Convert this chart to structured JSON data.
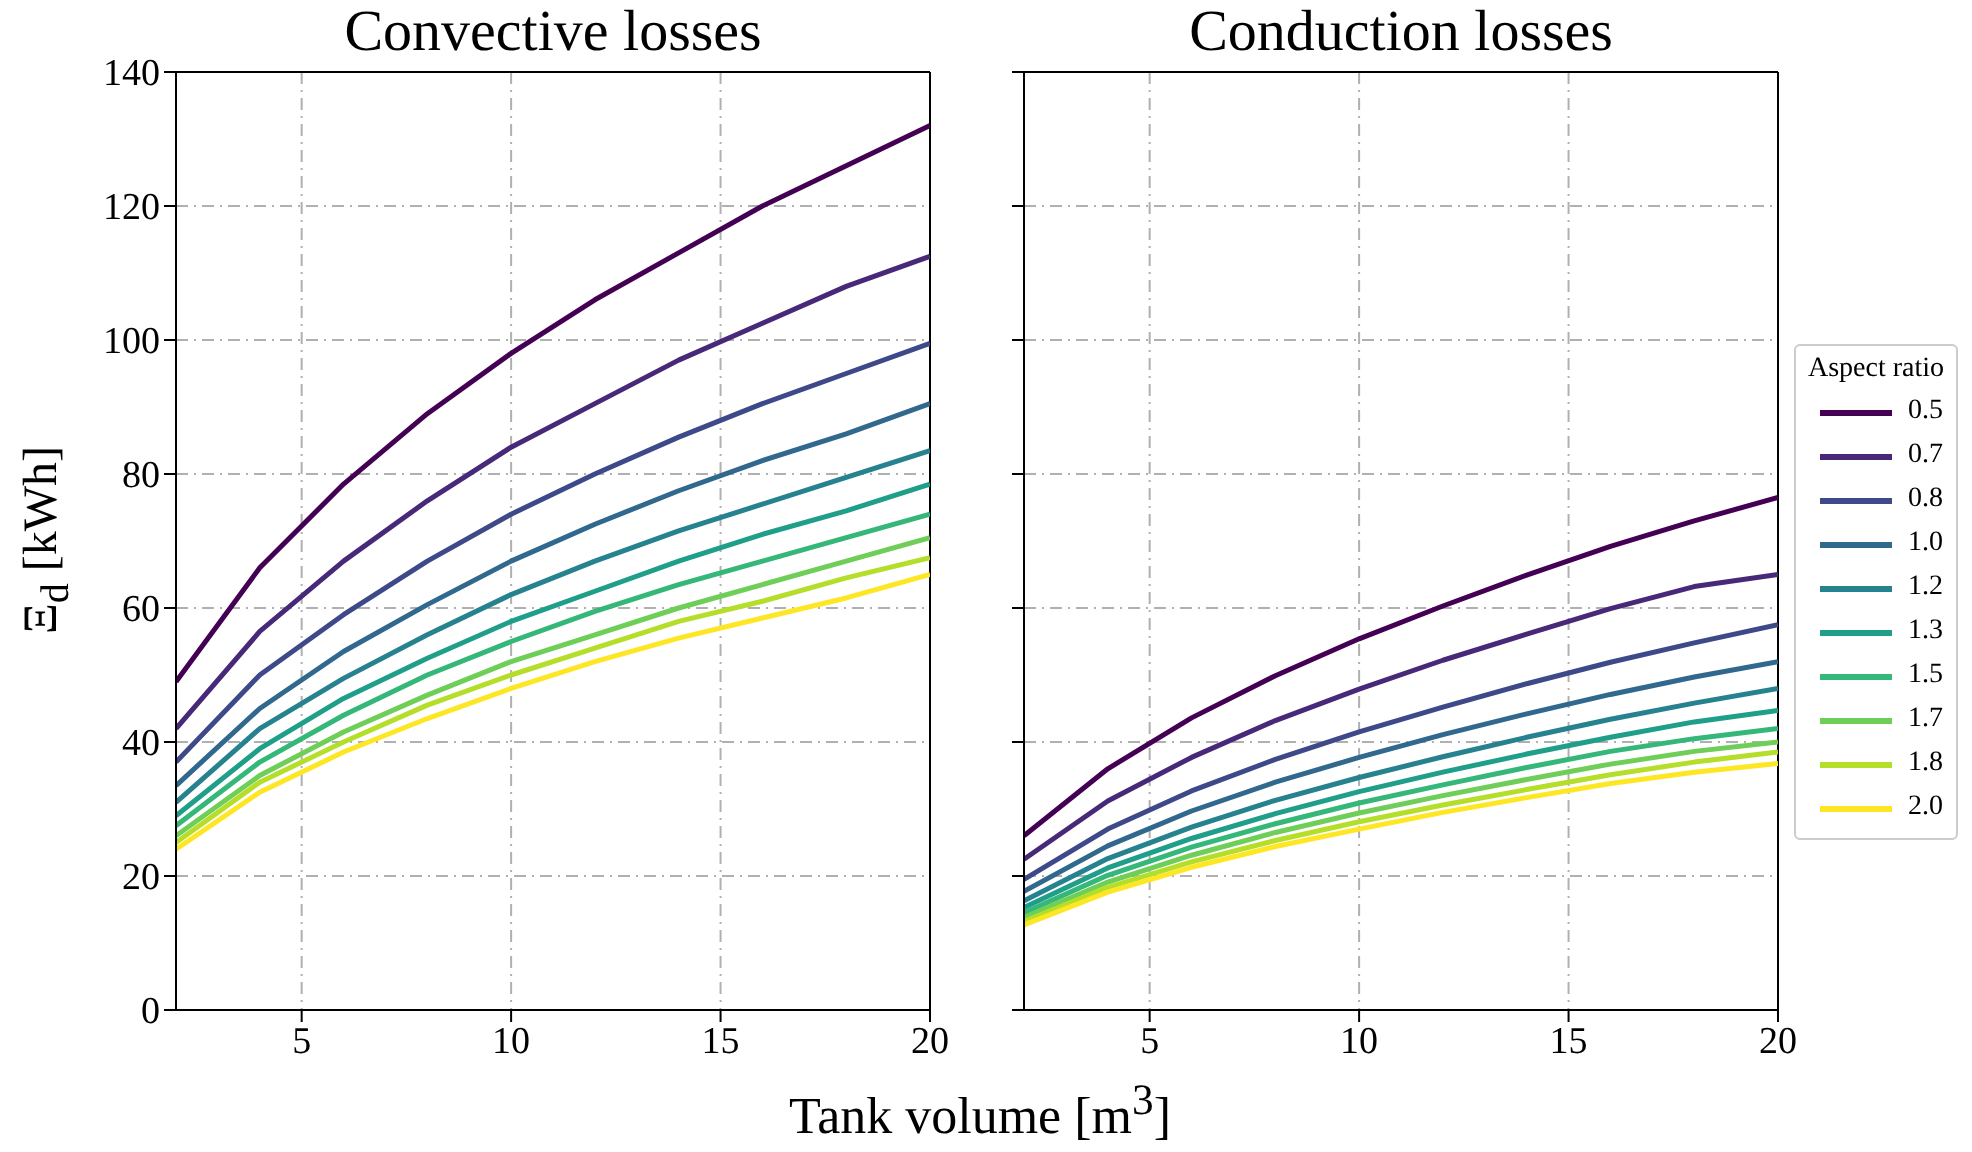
{
  "chart_data": [
    {
      "type": "line",
      "title": "Convective losses",
      "xlabel": "Tank volume [m$^{3}$]",
      "ylabel": "Ξ$_{d}$ [kWh]",
      "x": [
        2,
        4,
        6,
        8,
        10,
        12,
        14,
        16,
        18,
        20
      ],
      "xlim": [
        2,
        20
      ],
      "xticks": [
        5,
        10,
        15,
        20
      ],
      "ylim": [
        0,
        140
      ],
      "yticks": [
        0,
        20,
        40,
        60,
        80,
        100,
        120,
        140
      ],
      "grid": true,
      "legend": false,
      "marker": "none",
      "line_style": "solid",
      "series": [
        {
          "color": "#440154",
          "values": [
            49,
            66,
            78.5,
            89,
            98,
            106,
            113,
            120,
            126,
            132
          ]
        },
        {
          "color": "#482878",
          "values": [
            42,
            56.5,
            67,
            76,
            84,
            90.5,
            97,
            102.5,
            108,
            112.5
          ]
        },
        {
          "color": "#3e4989",
          "values": [
            37,
            50,
            59,
            67,
            74,
            80,
            85.5,
            90.5,
            95,
            99.5
          ]
        },
        {
          "color": "#31688e",
          "values": [
            33.5,
            45,
            53.5,
            60.5,
            67,
            72.5,
            77.5,
            82,
            86,
            90.5
          ]
        },
        {
          "color": "#26828e",
          "values": [
            31,
            42,
            49.5,
            56,
            62,
            67,
            71.5,
            75.5,
            79.5,
            83.5
          ]
        },
        {
          "color": "#1f9e89",
          "values": [
            29,
            39,
            46.5,
            52.5,
            58,
            62.5,
            67,
            71,
            74.5,
            78.5
          ]
        },
        {
          "color": "#35b779",
          "values": [
            27.5,
            37,
            44,
            50,
            55,
            59.5,
            63.5,
            67,
            70.5,
            74
          ]
        },
        {
          "color": "#6ece58",
          "values": [
            26,
            35,
            41.5,
            47,
            52,
            56,
            60,
            63.5,
            67,
            70.5
          ]
        },
        {
          "color": "#b5de2b",
          "values": [
            25,
            34,
            40,
            45.5,
            50,
            54,
            58,
            61,
            64.5,
            67.5
          ]
        },
        {
          "color": "#fde725",
          "values": [
            24,
            32.5,
            38.5,
            43.5,
            48,
            52,
            55.5,
            58.5,
            61.5,
            65
          ]
        }
      ]
    },
    {
      "type": "line",
      "title": "Conduction losses",
      "legend_title": "Aspect ratio",
      "x": [
        2,
        4,
        6,
        8,
        10,
        12,
        14,
        16,
        18,
        20
      ],
      "xlim": [
        2,
        20
      ],
      "xticks": [
        5,
        10,
        15,
        20
      ],
      "ylim": [
        0,
        140
      ],
      "yticks": [
        0,
        20,
        40,
        60,
        80,
        100,
        120,
        140
      ],
      "tick_labels": "x",
      "grid": true,
      "legend": "right",
      "marker": "none",
      "line_style": "solid",
      "series": [
        {
          "name": "0.5",
          "color": "#440154",
          "values": [
            26,
            36,
            43.6,
            49.9,
            55.4,
            60.3,
            64.9,
            69.2,
            73,
            76.5
          ]
        },
        {
          "name": "0.7",
          "color": "#482878",
          "values": [
            22.5,
            31.2,
            37.7,
            43.2,
            47.9,
            52.2,
            56.1,
            59.9,
            63.2,
            65
          ]
        },
        {
          "name": "0.8",
          "color": "#3e4989",
          "values": [
            19.5,
            27,
            32.7,
            37.4,
            41.5,
            45.2,
            48.7,
            51.9,
            54.8,
            57.5
          ]
        },
        {
          "name": "1.0",
          "color": "#31688e",
          "values": [
            17.7,
            24.5,
            29.7,
            34,
            37.7,
            41.1,
            44.2,
            47.1,
            49.7,
            52
          ]
        },
        {
          "name": "1.2",
          "color": "#26828e",
          "values": [
            16.3,
            22.6,
            27.3,
            31.3,
            34.7,
            37.8,
            40.7,
            43.4,
            45.8,
            48
          ]
        },
        {
          "name": "1.3",
          "color": "#1f9e89",
          "values": [
            15.3,
            21.2,
            25.6,
            29.3,
            32.6,
            35.5,
            38.2,
            40.7,
            43,
            44.7
          ]
        },
        {
          "name": "1.5",
          "color": "#35b779",
          "values": [
            14.5,
            20.1,
            24.3,
            27.8,
            30.9,
            33.6,
            36.2,
            38.6,
            40.5,
            42
          ]
        },
        {
          "name": "1.7",
          "color": "#6ece58",
          "values": [
            13.8,
            19.1,
            23.1,
            26.5,
            29.4,
            32,
            34.4,
            36.7,
            38.6,
            40
          ]
        },
        {
          "name": "1.8",
          "color": "#b5de2b",
          "values": [
            13.2,
            18.3,
            22.1,
            25.3,
            28.1,
            30.6,
            32.9,
            35.1,
            37,
            38.5
          ]
        },
        {
          "name": "2.0",
          "color": "#fde725",
          "values": [
            12.7,
            17.6,
            21.3,
            24.4,
            27,
            29.5,
            31.7,
            33.8,
            35.5,
            36.8
          ]
        }
      ]
    }
  ]
}
